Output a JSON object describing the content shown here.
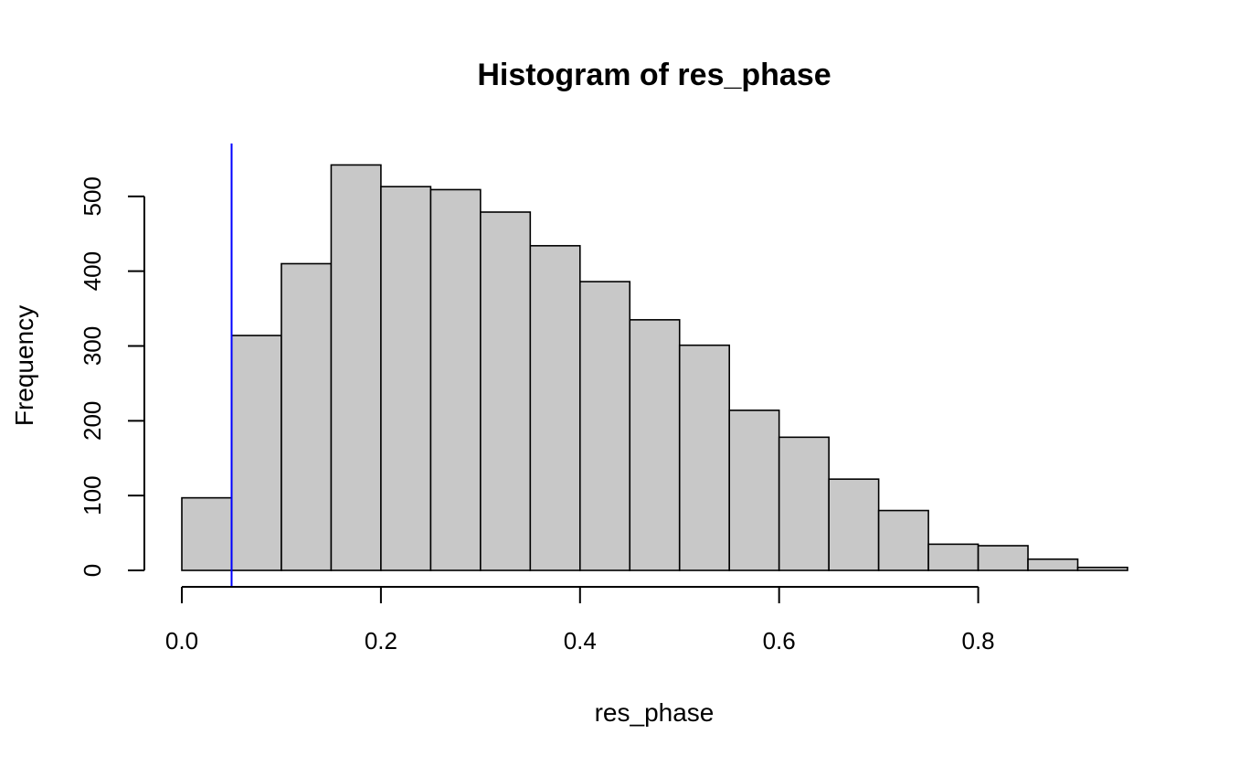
{
  "chart_data": {
    "type": "bar",
    "title": "Histogram of res_phase",
    "xlabel": "res_phase",
    "ylabel": "Frequency",
    "bins": [
      {
        "start": 0.0,
        "end": 0.05,
        "count": 97
      },
      {
        "start": 0.05,
        "end": 0.1,
        "count": 314
      },
      {
        "start": 0.1,
        "end": 0.15,
        "count": 410
      },
      {
        "start": 0.15,
        "end": 0.2,
        "count": 542
      },
      {
        "start": 0.2,
        "end": 0.25,
        "count": 513
      },
      {
        "start": 0.25,
        "end": 0.3,
        "count": 509
      },
      {
        "start": 0.3,
        "end": 0.35,
        "count": 479
      },
      {
        "start": 0.35,
        "end": 0.4,
        "count": 434
      },
      {
        "start": 0.4,
        "end": 0.45,
        "count": 386
      },
      {
        "start": 0.45,
        "end": 0.5,
        "count": 335
      },
      {
        "start": 0.5,
        "end": 0.55,
        "count": 301
      },
      {
        "start": 0.55,
        "end": 0.6,
        "count": 214
      },
      {
        "start": 0.6,
        "end": 0.65,
        "count": 178
      },
      {
        "start": 0.65,
        "end": 0.7,
        "count": 122
      },
      {
        "start": 0.7,
        "end": 0.75,
        "count": 80
      },
      {
        "start": 0.75,
        "end": 0.8,
        "count": 35
      },
      {
        "start": 0.8,
        "end": 0.85,
        "count": 33
      },
      {
        "start": 0.85,
        "end": 0.9,
        "count": 15
      },
      {
        "start": 0.9,
        "end": 0.95,
        "count": 4
      }
    ],
    "xticks": [
      "0.0",
      "0.2",
      "0.4",
      "0.6",
      "0.8"
    ],
    "xtick_values": [
      0.0,
      0.2,
      0.4,
      0.6,
      0.8
    ],
    "yticks": [
      "0",
      "100",
      "200",
      "300",
      "400",
      "500"
    ],
    "ytick_values": [
      0,
      100,
      200,
      300,
      400,
      500
    ],
    "xlim": [
      0.0,
      0.95
    ],
    "ylim": [
      0,
      567
    ],
    "vline": {
      "x": 0.05,
      "color": "#0000ff"
    },
    "bar_color": "#c8c8c8",
    "grid": false
  }
}
